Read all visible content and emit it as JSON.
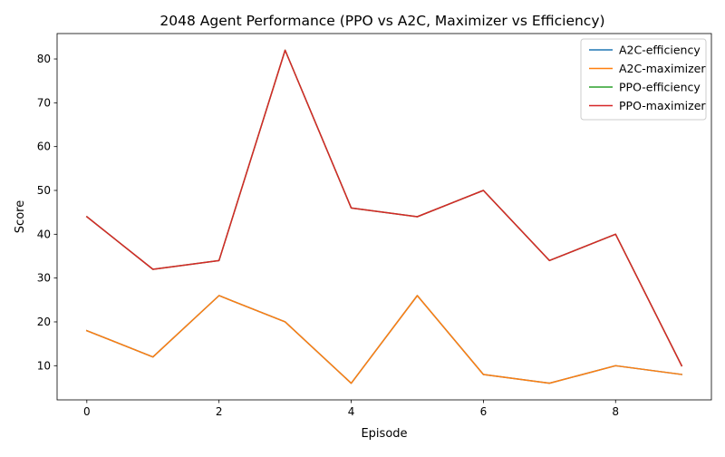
{
  "chart_data": {
    "type": "line",
    "title": "2048 Agent Performance (PPO vs A2C, Maximizer vs Efficiency)",
    "xlabel": "Episode",
    "ylabel": "Score",
    "xlim": [
      -0.45,
      9.45
    ],
    "ylim": [
      2.2,
      85.8
    ],
    "xticks": [
      0,
      2,
      4,
      6,
      8
    ],
    "yticks": [
      10,
      20,
      30,
      40,
      50,
      60,
      70,
      80
    ],
    "grid": false,
    "legend_position": "top-right",
    "x": [
      0,
      1,
      2,
      3,
      4,
      5,
      6,
      7,
      8,
      9
    ],
    "series": [
      {
        "name": "A2C-efficiency",
        "color": "#1f77b4",
        "values": [
          18,
          12,
          26,
          20,
          6,
          26,
          8,
          6,
          10,
          8
        ]
      },
      {
        "name": "A2C-maximizer",
        "color": "#ff7f0e",
        "values": [
          18,
          12,
          26,
          20,
          6,
          26,
          8,
          6,
          10,
          8
        ]
      },
      {
        "name": "PPO-efficiency",
        "color": "#2ca02c",
        "values": [
          44,
          32,
          34,
          82,
          46,
          44,
          50,
          34,
          40,
          10
        ]
      },
      {
        "name": "PPO-maximizer",
        "color": "#d62728",
        "values": [
          44,
          32,
          34,
          82,
          46,
          44,
          50,
          34,
          40,
          10
        ]
      }
    ]
  }
}
